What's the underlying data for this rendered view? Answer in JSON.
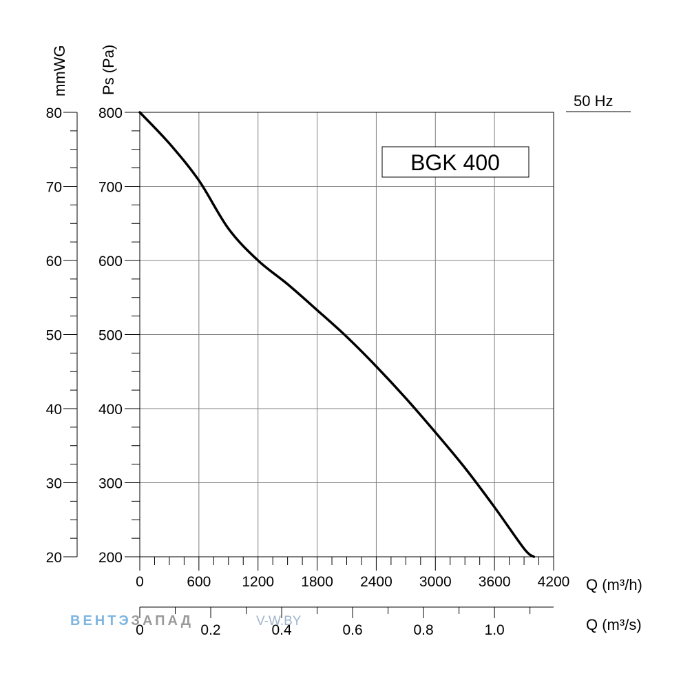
{
  "chart_data": {
    "type": "line",
    "model_label": "BGK 400",
    "frequency_label": "50 Hz",
    "ylabel": "Ps (Pa)",
    "ylabel_secondary": "mmWG",
    "xlabel": "Q (m³/h)",
    "xlabel_secondary": "Q (m³/s)",
    "xlim": [
      0,
      4200
    ],
    "ylim": [
      200,
      800
    ],
    "ylim_secondary": [
      20,
      80
    ],
    "grid": true,
    "x_ticks": [
      "0",
      "600",
      "1200",
      "1800",
      "2400",
      "3000",
      "3600",
      "4200"
    ],
    "y_ticks": [
      "200",
      "300",
      "400",
      "500",
      "600",
      "700",
      "800"
    ],
    "y_ticks_secondary": [
      "20",
      "30",
      "40",
      "50",
      "60",
      "70",
      "80"
    ],
    "x_ticks_secondary": [
      "0",
      "0.2",
      "0.4",
      "0.6",
      "0.8",
      "1.0"
    ],
    "series": [
      {
        "x": [
          0,
          300,
          600,
          900,
          1200,
          1500,
          1800,
          2100,
          2400,
          2700,
          3000,
          3300,
          3600,
          3900,
          4000
        ],
        "y": [
          800,
          758,
          708,
          643,
          600,
          568,
          533,
          497,
          457,
          414,
          368,
          320,
          267,
          211,
          200
        ]
      }
    ]
  },
  "watermark": {
    "part1": "ВЕНТЭ",
    "part2": "ЗАПАД",
    "part3": "V-W.BY"
  },
  "colors": {
    "curve": "#000000",
    "grid": "#808080",
    "watermark_blue": "#7fb6e0",
    "watermark_gray": "#9a9a9a"
  }
}
